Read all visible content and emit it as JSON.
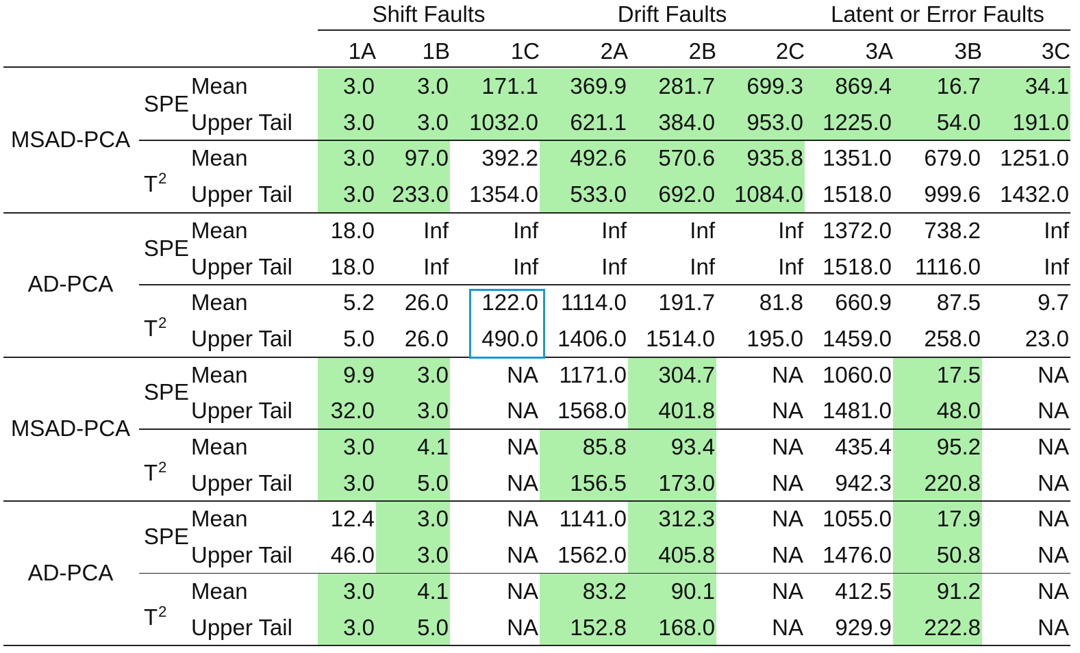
{
  "column_groups": [
    {
      "label": "Shift Faults",
      "span": 3
    },
    {
      "label": "Drift Faults",
      "span": 3
    },
    {
      "label": "Latent or Error Faults",
      "span": 3
    }
  ],
  "columns": [
    "1A",
    "1B",
    "1C",
    "2A",
    "2B",
    "2C",
    "3A",
    "3B",
    "3C"
  ],
  "highlight_color": "#aef0aa",
  "outline_color": "#1a97d6",
  "blocks": [
    {
      "method": "MSAD-PCA",
      "groups": [
        {
          "stat_type": "SPE",
          "rows": [
            {
              "stat": "Mean",
              "values": [
                "3.0",
                "3.0",
                "171.1",
                "369.9",
                "281.7",
                "699.3",
                "869.4",
                "16.7",
                "34.1"
              ],
              "highlight": [
                1,
                1,
                1,
                1,
                1,
                1,
                1,
                1,
                1
              ]
            },
            {
              "stat": "Upper Tail",
              "values": [
                "3.0",
                "3.0",
                "1032.0",
                "621.1",
                "384.0",
                "953.0",
                "1225.0",
                "54.0",
                "191.0"
              ],
              "highlight": [
                1,
                1,
                1,
                1,
                1,
                1,
                1,
                1,
                1
              ]
            }
          ]
        },
        {
          "stat_type": "T",
          "rows": [
            {
              "stat": "Mean",
              "values": [
                "3.0",
                "97.0",
                "392.2",
                "492.6",
                "570.6",
                "935.8",
                "1351.0",
                "679.0",
                "1251.0"
              ],
              "highlight": [
                1,
                1,
                0,
                1,
                1,
                1,
                0,
                0,
                0
              ]
            },
            {
              "stat": "Upper Tail",
              "values": [
                "3.0",
                "233.0",
                "1354.0",
                "533.0",
                "692.0",
                "1084.0",
                "1518.0",
                "999.6",
                "1432.0"
              ],
              "highlight": [
                1,
                1,
                0,
                1,
                1,
                1,
                0,
                0,
                0
              ]
            }
          ]
        }
      ]
    },
    {
      "method": "AD-PCA",
      "groups": [
        {
          "stat_type": "SPE",
          "rows": [
            {
              "stat": "Mean",
              "values": [
                "18.0",
                "Inf",
                "Inf",
                "Inf",
                "Inf",
                "Inf",
                "1372.0",
                "738.2",
                "Inf"
              ],
              "highlight": [
                0,
                0,
                0,
                0,
                0,
                0,
                0,
                0,
                0
              ]
            },
            {
              "stat": "Upper Tail",
              "values": [
                "18.0",
                "Inf",
                "Inf",
                "Inf",
                "Inf",
                "Inf",
                "1518.0",
                "1116.0",
                "Inf"
              ],
              "highlight": [
                0,
                0,
                0,
                0,
                0,
                0,
                0,
                0,
                0
              ]
            }
          ]
        },
        {
          "stat_type": "T",
          "rows": [
            {
              "stat": "Mean",
              "values": [
                "5.2",
                "26.0",
                "122.0",
                "1114.0",
                "191.7",
                "81.8",
                "660.9",
                "87.5",
                "9.7"
              ],
              "highlight": [
                0,
                0,
                0,
                0,
                0,
                0,
                0,
                0,
                0
              ]
            },
            {
              "stat": "Upper Tail",
              "values": [
                "5.0",
                "26.0",
                "490.0",
                "1406.0",
                "1514.0",
                "195.0",
                "1459.0",
                "258.0",
                "23.0"
              ],
              "highlight": [
                0,
                0,
                0,
                0,
                0,
                0,
                0,
                0,
                0
              ]
            }
          ]
        }
      ]
    },
    {
      "method": "MSAD-PCA",
      "groups": [
        {
          "stat_type": "SPE",
          "rows": [
            {
              "stat": "Mean",
              "values": [
                "9.9",
                "3.0",
                "NA",
                "1171.0",
                "304.7",
                "NA",
                "1060.0",
                "17.5",
                "NA"
              ],
              "highlight": [
                1,
                1,
                0,
                0,
                1,
                0,
                0,
                1,
                0
              ]
            },
            {
              "stat": "Upper Tail",
              "values": [
                "32.0",
                "3.0",
                "NA",
                "1568.0",
                "401.8",
                "NA",
                "1481.0",
                "48.0",
                "NA"
              ],
              "highlight": [
                1,
                1,
                0,
                0,
                1,
                0,
                0,
                1,
                0
              ]
            }
          ]
        },
        {
          "stat_type": "T",
          "rows": [
            {
              "stat": "Mean",
              "values": [
                "3.0",
                "4.1",
                "NA",
                "85.8",
                "93.4",
                "NA",
                "435.4",
                "95.2",
                "NA"
              ],
              "highlight": [
                1,
                1,
                0,
                1,
                1,
                0,
                0,
                1,
                0
              ]
            },
            {
              "stat": "Upper Tail",
              "values": [
                "3.0",
                "5.0",
                "NA",
                "156.5",
                "173.0",
                "NA",
                "942.3",
                "220.8",
                "NA"
              ],
              "highlight": [
                1,
                1,
                0,
                1,
                1,
                0,
                0,
                1,
                0
              ]
            }
          ]
        }
      ]
    },
    {
      "method": "AD-PCA",
      "groups": [
        {
          "stat_type": "SPE",
          "rows": [
            {
              "stat": "Mean",
              "values": [
                "12.4",
                "3.0",
                "NA",
                "1141.0",
                "312.3",
                "NA",
                "1055.0",
                "17.9",
                "NA"
              ],
              "highlight": [
                0,
                1,
                0,
                0,
                1,
                0,
                0,
                1,
                0
              ]
            },
            {
              "stat": "Upper Tail",
              "values": [
                "46.0",
                "3.0",
                "NA",
                "1562.0",
                "405.8",
                "NA",
                "1476.0",
                "50.8",
                "NA"
              ],
              "highlight": [
                0,
                1,
                0,
                0,
                1,
                0,
                0,
                1,
                0
              ]
            }
          ]
        },
        {
          "stat_type": "T",
          "rows": [
            {
              "stat": "Mean",
              "values": [
                "3.0",
                "4.1",
                "NA",
                "83.2",
                "90.1",
                "NA",
                "412.5",
                "91.2",
                "NA"
              ],
              "highlight": [
                1,
                1,
                0,
                1,
                1,
                0,
                0,
                1,
                0
              ]
            },
            {
              "stat": "Upper Tail",
              "values": [
                "3.0",
                "5.0",
                "NA",
                "152.8",
                "168.0",
                "NA",
                "929.9",
                "222.8",
                "NA"
              ],
              "highlight": [
                1,
                1,
                0,
                1,
                1,
                0,
                0,
                1,
                0
              ]
            }
          ]
        }
      ]
    }
  ],
  "superscript_2": "2",
  "outlined_cells": [
    {
      "block": 1,
      "group": 1,
      "rows": [
        0,
        1
      ],
      "column": "1C"
    }
  ]
}
